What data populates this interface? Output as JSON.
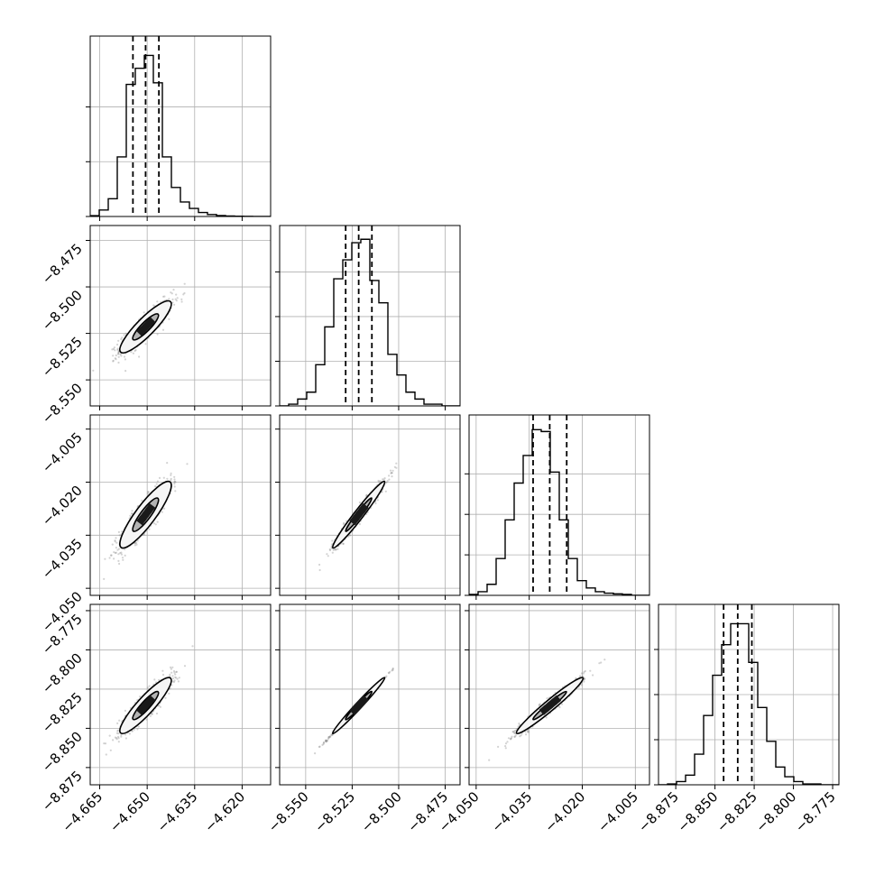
{
  "chart_data": {
    "type": "corner",
    "description_free": true,
    "params": [
      {
        "range": [
          -4.668,
          -4.611
        ],
        "ticks": [
          -4.665,
          -4.65,
          -4.635,
          -4.62
        ],
        "tick_labels": [
          "−4.665",
          "−4.650",
          "−4.635",
          "−4.620"
        ],
        "quantiles": [
          -4.6545,
          -4.6505,
          -4.6463
        ],
        "hist": [
          0.005,
          0.04,
          0.11,
          0.37,
          0.82,
          0.92,
          1.0,
          0.83,
          0.37,
          0.18,
          0.09,
          0.05,
          0.025,
          0.012,
          0.006,
          0.003,
          0.002,
          0.001,
          0.0,
          0.0
        ],
        "hist_ylim": [
          0,
          1.12
        ],
        "hist_yticks": [
          0.34,
          0.68
        ]
      },
      {
        "range": [
          -8.564,
          -8.467
        ],
        "ticks": [
          -8.55,
          -8.525,
          -8.5,
          -8.475
        ],
        "tick_labels": [
          "−8.550",
          "−8.525",
          "−8.500",
          "−8.475"
        ],
        "quantiles": [
          -8.5285,
          -8.5215,
          -8.5144
        ],
        "hist": [
          0.0,
          0.01,
          0.04,
          0.08,
          0.24,
          0.46,
          0.74,
          0.85,
          0.95,
          0.97,
          0.73,
          0.6,
          0.3,
          0.18,
          0.08,
          0.04,
          0.01,
          0.01,
          0.0,
          0.0
        ],
        "hist_ylim": [
          0,
          1.05
        ],
        "hist_yticks": [
          0.26,
          0.52,
          0.78
        ]
      },
      {
        "range": [
          -4.052,
          -4.001
        ],
        "ticks": [
          -4.05,
          -4.035,
          -4.02,
          -4.005
        ],
        "tick_labels": [
          "−4.050",
          "−4.035",
          "−4.020",
          "−4.005"
        ],
        "quantiles": [
          -4.0339,
          -4.0292,
          -4.0244
        ],
        "hist": [
          0.005,
          0.02,
          0.06,
          0.2,
          0.41,
          0.61,
          0.76,
          0.9,
          0.89,
          0.67,
          0.41,
          0.2,
          0.08,
          0.04,
          0.02,
          0.012,
          0.008,
          0.005,
          0.0,
          0.0
        ],
        "hist_ylim": [
          0,
          0.98
        ],
        "hist_yticks": [
          0.22,
          0.44,
          0.66
        ]
      },
      {
        "range": [
          -8.886,
          -8.771
        ],
        "ticks": [
          -8.875,
          -8.85,
          -8.825,
          -8.8,
          -8.775
        ],
        "tick_labels": [
          "−8.875",
          "−8.850",
          "−8.825",
          "−8.800",
          "−8.775"
        ],
        "quantiles": [
          -8.8445,
          -8.8355,
          -8.8265
        ],
        "hist": [
          0.0,
          0.005,
          0.02,
          0.06,
          0.19,
          0.43,
          0.68,
          0.87,
          1.0,
          1.0,
          0.76,
          0.48,
          0.27,
          0.11,
          0.05,
          0.02,
          0.005,
          0.005,
          0.0,
          0.0
        ],
        "hist_ylim": [
          0,
          1.12
        ],
        "hist_yticks": [
          0.28,
          0.56,
          0.84
        ]
      }
    ],
    "correlation": [
      [
        1.0,
        0.88,
        0.88,
        0.9
      ],
      [
        0.88,
        1.0,
        0.975,
        0.999
      ],
      [
        0.88,
        0.975,
        1.0,
        0.97
      ],
      [
        0.9,
        0.999,
        0.97,
        1.0
      ]
    ],
    "contour_levels": [
      0.39,
      0.86
    ],
    "grid": true
  },
  "colors": {
    "axes": "#000000",
    "grid": "#b0b0b0",
    "scatter": "#808080",
    "contour_line": "#000000",
    "fill_outer": "#f5f5f5",
    "fill_mid": "#b3b3b3",
    "fill_inner": "#1a1a1a"
  }
}
